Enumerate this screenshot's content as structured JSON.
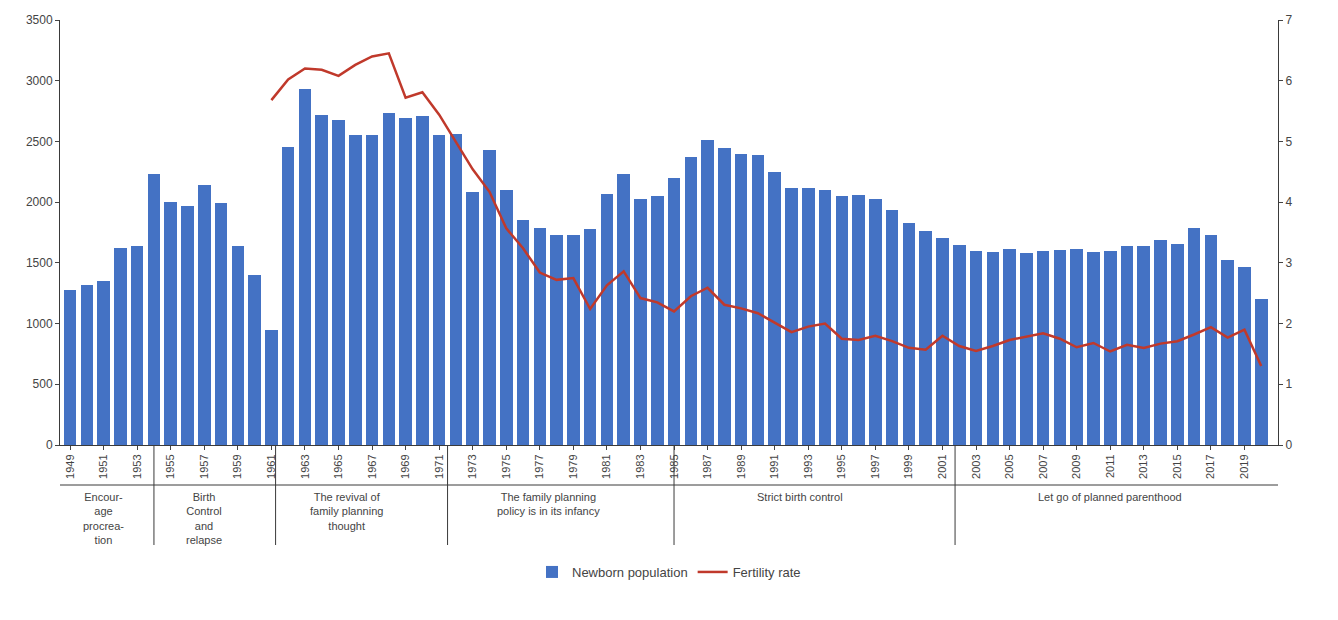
{
  "chart_data": {
    "type": "bar",
    "series": [
      {
        "name": "Newborn population",
        "type": "bar",
        "color": "#4472C4",
        "x": [
          1949,
          1950,
          1951,
          1952,
          1953,
          1954,
          1955,
          1956,
          1957,
          1958,
          1959,
          1960,
          1961,
          1962,
          1963,
          1964,
          1965,
          1966,
          1967,
          1968,
          1969,
          1970,
          1971,
          1972,
          1973,
          1974,
          1975,
          1976,
          1977,
          1978,
          1979,
          1980,
          1981,
          1982,
          1983,
          1984,
          1985,
          1986,
          1987,
          1988,
          1989,
          1990,
          1991,
          1992,
          1993,
          1994,
          1995,
          1996,
          1997,
          1998,
          1999,
          2000,
          2001,
          2002,
          2003,
          2004,
          2005,
          2006,
          2007,
          2008,
          2009,
          2010,
          2011,
          2012,
          2013,
          2014,
          2015,
          2016,
          2017,
          2018,
          2019,
          2020
        ],
        "values": [
          1275,
          1319,
          1349,
          1622,
          1637,
          2232,
          2003,
          1966,
          2138,
          1990,
          1635,
          1402,
          949,
          2452,
          2934,
          2721,
          2679,
          2554,
          2554,
          2732,
          2690,
          2710,
          2552,
          2558,
          2082,
          2432,
          2101,
          1849,
          1784,
          1733,
          1726,
          1779,
          2063,
          2230,
          2027,
          2050,
          2196,
          2374,
          2508,
          2445,
          2396,
          2391,
          2250,
          2113,
          2120,
          2099,
          2052,
          2057,
          2028,
          1934,
          1827,
          1765,
          1702,
          1647,
          1599,
          1588,
          1612,
          1584,
          1594,
          1608,
          1615,
          1588,
          1600,
          1635,
          1640,
          1687,
          1655,
          1786,
          1728,
          1523,
          1465,
          1200
        ]
      },
      {
        "name": "Fertility rate",
        "type": "line",
        "axis": "y2",
        "color": "#C0392B",
        "x": [
          1961,
          1962,
          1963,
          1964,
          1965,
          1966,
          1967,
          1968,
          1969,
          1970,
          1971,
          1972,
          1973,
          1974,
          1975,
          1976,
          1977,
          1978,
          1979,
          1980,
          1981,
          1982,
          1983,
          1984,
          1985,
          1986,
          1987,
          1988,
          1989,
          1990,
          1991,
          1992,
          1993,
          1994,
          1995,
          1996,
          1997,
          1998,
          1999,
          2000,
          2001,
          2002,
          2003,
          2004,
          2005,
          2006,
          2007,
          2008,
          2009,
          2010,
          2011,
          2012,
          2013,
          2014,
          2015,
          2016,
          2017,
          2018,
          2019,
          2020
        ],
        "values": [
          5.68,
          6.02,
          6.2,
          6.18,
          6.08,
          6.26,
          6.4,
          6.45,
          5.72,
          5.81,
          5.44,
          4.98,
          4.54,
          4.17,
          3.57,
          3.24,
          2.84,
          2.72,
          2.75,
          2.24,
          2.63,
          2.86,
          2.42,
          2.35,
          2.2,
          2.45,
          2.59,
          2.31,
          2.25,
          2.17,
          2.01,
          1.86,
          1.95,
          2.0,
          1.75,
          1.73,
          1.8,
          1.71,
          1.6,
          1.57,
          1.8,
          1.63,
          1.55,
          1.63,
          1.73,
          1.78,
          1.84,
          1.75,
          1.61,
          1.68,
          1.54,
          1.65,
          1.6,
          1.67,
          1.71,
          1.82,
          1.94,
          1.77,
          1.9,
          1.3
        ]
      }
    ],
    "xlim": [
      1948.4,
      2021.0
    ],
    "xticks": [
      1949,
      1951,
      1953,
      1955,
      1957,
      1959,
      1961,
      1963,
      1965,
      1967,
      1969,
      1971,
      1973,
      1975,
      1977,
      1979,
      1981,
      1983,
      1985,
      1987,
      1989,
      1991,
      1993,
      1995,
      1997,
      1999,
      2001,
      2003,
      2005,
      2007,
      2009,
      2011,
      2013,
      2015,
      2017,
      2019
    ],
    "ylim": [
      0,
      3500
    ],
    "yticks": [
      0,
      500,
      1000,
      1500,
      2000,
      2500,
      3000,
      3500
    ],
    "y2lim": [
      0,
      7
    ],
    "y2ticks": [
      0,
      1,
      2,
      3,
      4,
      5,
      6,
      7
    ],
    "annotations": [
      {
        "text": "Encour-\nage\nprocrea-\ntion",
        "x": 1951.0
      },
      {
        "text": "Birth\nControl\nand\nrelapse",
        "x": 1957.0
      },
      {
        "text": "The revival of\nfamily planning\nthought",
        "x": 1965.5
      },
      {
        "text": "The family planning\npolicy is in its infancy",
        "x": 1977.5
      },
      {
        "text": "Strict birth control",
        "x": 1992.5
      },
      {
        "text": "Let go of planned parenthood",
        "x": 2011.0
      }
    ],
    "grid": false,
    "legend": "bottom"
  }
}
